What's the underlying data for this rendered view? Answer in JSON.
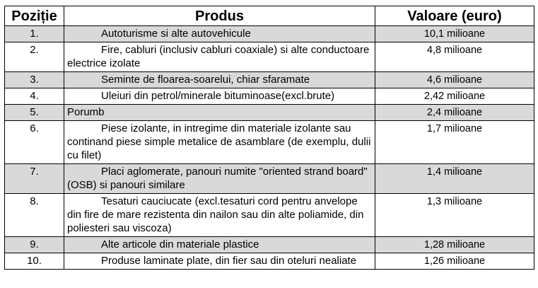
{
  "headers": {
    "position": "Poziție",
    "product": "Produs",
    "value": "Valoare (euro)"
  },
  "rows": [
    {
      "pos": "1.",
      "product": "Autoturisme si alte autovehicule",
      "value": "10,1 milioane",
      "shaded": true
    },
    {
      "pos": "2.",
      "product": "Fire, cabluri (inclusiv cabluri coaxiale) si alte conductoare electrice izolate",
      "value": "4,8 milioane",
      "shaded": false
    },
    {
      "pos": "3.",
      "product": "Seminte de floarea-soarelui, chiar sfaramate",
      "value": "4,6 milioane",
      "shaded": true
    },
    {
      "pos": "4.",
      "product": "Uleiuri din petrol/minerale bituminoase(excl.brute)",
      "value": "2,42 milioane",
      "shaded": false
    },
    {
      "pos": "5.",
      "product": "Porumb",
      "value": "2,4 milioane",
      "shaded": true,
      "noindent": true
    },
    {
      "pos": "6.",
      "product": "Piese izolante, in intregime din materiale izolante sau continand piese simple metalice de asamblare (de exemplu, dulii cu filet)",
      "value": "1,7 milioane",
      "shaded": false
    },
    {
      "pos": "7.",
      "product": "Placi aglomerate, panouri numite \"oriented strand board\" (OSB) si panouri similare",
      "value": "1,4 milioane",
      "shaded": true
    },
    {
      "pos": "8.",
      "product": "Tesaturi cauciucate (excl.tesaturi cord pentru anvelope din fire de mare rezistenta din nailon sau din alte poliamide, din poliesteri sau viscoza)",
      "value": "1,3 milioane",
      "shaded": false
    },
    {
      "pos": "9.",
      "product": "Alte articole din materiale plastice",
      "value": "1,28 milioane",
      "shaded": true
    },
    {
      "pos": "10.",
      "product": "Produse laminate plate, din fier sau din oteluri nealiate",
      "value": "1,26 milioane",
      "shaded": false
    }
  ],
  "colors": {
    "shade": "#d9d9d9",
    "border": "#000000"
  }
}
